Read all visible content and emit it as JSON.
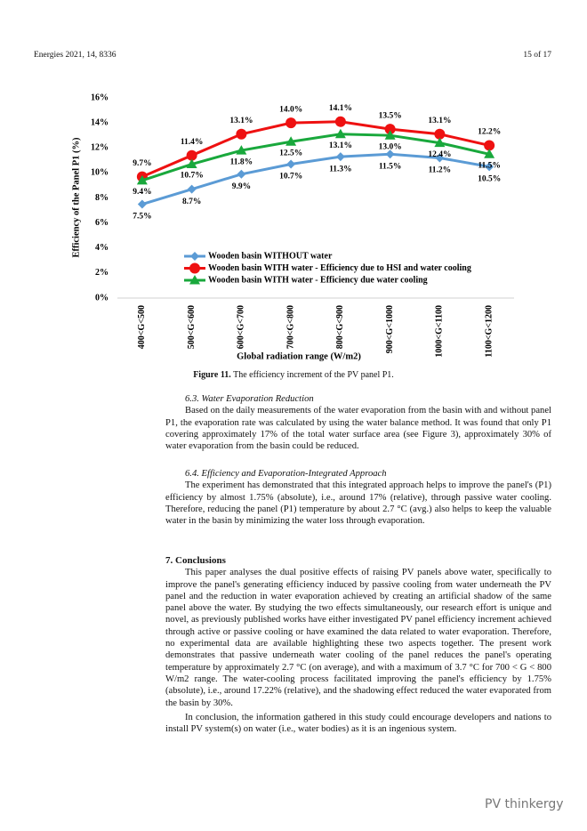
{
  "header": {
    "journal": "Energies 2021, 14, 8336",
    "page": "15 of 17"
  },
  "chart_data": {
    "type": "line",
    "y_label": "Efficiency of the Panel P1 (%)",
    "x_label": "Global radiation range (W/m2)",
    "categories": [
      "400<G<500",
      "500<G<600",
      "600<G<700",
      "700<G<800",
      "800<G<900",
      "900<G<1000",
      "1000<G<1100",
      "1100<G<1200"
    ],
    "series": [
      {
        "name": "Wooden basin WITHOUT water",
        "color": "#5b9bd5",
        "marker": "diamond",
        "values": [
          7.5,
          8.7,
          9.9,
          10.7,
          11.3,
          11.5,
          11.2,
          10.5
        ],
        "value_labels": [
          "7.5%",
          "8.7%",
          "9.9%",
          "10.7%",
          "11.3%",
          "11.5%",
          "11.2%",
          "10.5%"
        ]
      },
      {
        "name": "Wooden basin WITH water - Efficiency due to HSI and water cooling",
        "color": "#ee1111",
        "marker": "circle",
        "values": [
          9.7,
          11.4,
          13.1,
          14.0,
          14.1,
          13.5,
          13.1,
          12.2
        ],
        "value_labels": [
          "9.7%",
          "11.4%",
          "13.1%",
          "14.0%",
          "14.1%",
          "13.5%",
          "13.1%",
          "12.2%"
        ]
      },
      {
        "name": "Wooden basin WITH water - Efficiency due  water cooling",
        "color": "#19a83c",
        "marker": "triangle",
        "values": [
          9.4,
          10.7,
          11.8,
          12.5,
          13.1,
          13.0,
          12.4,
          11.5
        ],
        "value_labels": [
          "9.4%",
          "10.7%",
          "11.8%",
          "12.5%",
          "13.1%",
          "13.0%",
          "12.4%",
          "11.5%"
        ]
      }
    ],
    "ylim": [
      0,
      16
    ],
    "yticks": [
      {
        "value": 0,
        "label": "0%"
      },
      {
        "value": 2,
        "label": "2%"
      },
      {
        "value": 4,
        "label": "4%"
      },
      {
        "value": 6,
        "label": "6%"
      },
      {
        "value": 8,
        "label": "8%"
      },
      {
        "value": 10,
        "label": "10%"
      },
      {
        "value": 12,
        "label": "12%"
      },
      {
        "value": 14,
        "label": "14%"
      },
      {
        "value": 16,
        "label": "16%"
      }
    ],
    "grid": false,
    "legend": "lower left"
  },
  "caption": {
    "label": "Figure 11.",
    "text": "The efficiency increment of the PV panel P1."
  },
  "sections": [
    {
      "heading": "6.3. Water Evaporation Reduction",
      "paragraphs": [
        "Based on the daily measurements of the water evaporation from the basin with and without panel P1, the evaporation rate was calculated by using the water balance method. It was found that only P1 covering approximately 17% of the total water surface area (see Figure 3), approximately 30% of water evaporation from the basin could be reduced."
      ]
    },
    {
      "heading": "6.4. Efficiency and Evaporation-Integrated Approach",
      "paragraphs": [
        "The experiment has demonstrated that this integrated approach helps to improve the panel's (P1) efficiency by almost 1.75% (absolute), i.e., around 17% (relative), through passive water cooling. Therefore, reducing the panel (P1) temperature by about 2.7 °C (avg.) also helps to keep the valuable water in the basin by minimizing the water loss through evaporation."
      ]
    },
    {
      "heading": "7. Conclusions",
      "paragraphs": [
        "This paper analyses the dual positive effects of raising PV panels above water, specifically to improve the panel's generating efficiency induced by passive cooling from water underneath the PV panel and the reduction in water evaporation achieved by creating an artificial shadow of the same panel above the water. By studying the two effects simultaneously, our research effort is unique and novel, as previously published works have either investigated PV panel efficiency increment achieved through active or passive cooling or have examined the data related to water evaporation. Therefore, no experimental data are available highlighting these two aspects together. The present work demonstrates that passive underneath water cooling of the panel reduces the panel's operating temperature by approximately 2.7 °C (on average), and with a maximum of 3.7 °C for 700 < G < 800 W/m2 range. The water-cooling process facilitated improving the panel's efficiency by 1.75% (absolute), i.e., around 17.22% (relative), and the shadowing effect reduced the water evaporated from the basin by 30%.",
        "In conclusion, the information gathered in this study could encourage developers and nations to install PV system(s) on water (i.e., water bodies) as it is an ingenious system."
      ]
    }
  ],
  "watermark": "PV thinkergy"
}
